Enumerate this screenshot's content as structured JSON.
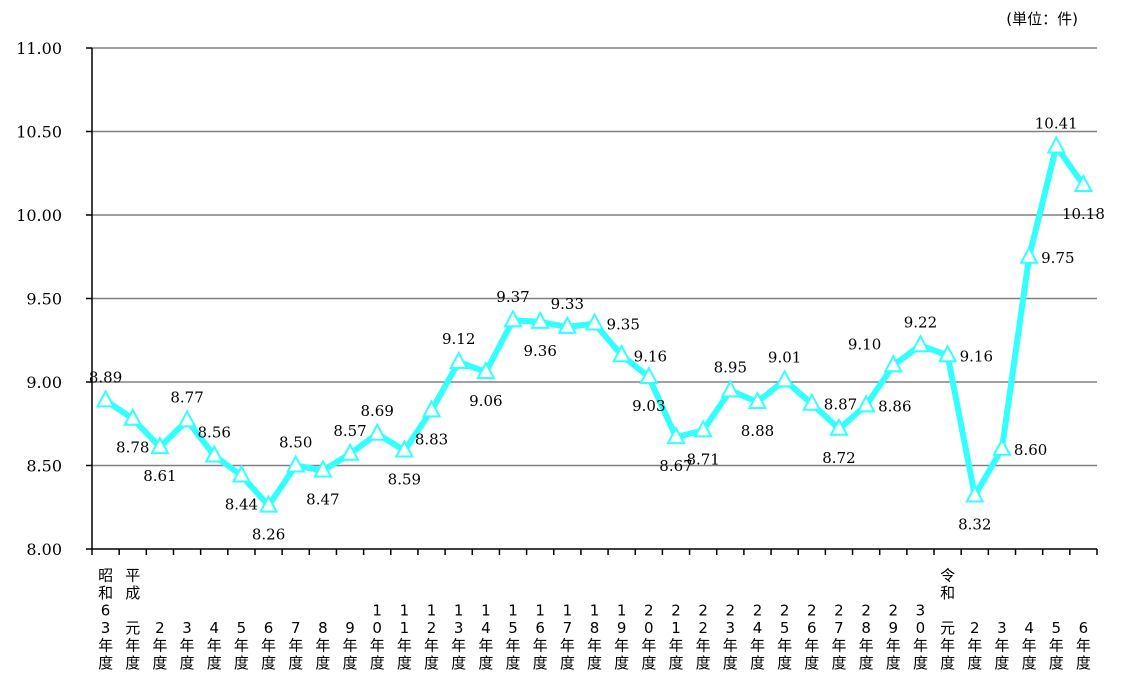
{
  "chart_data": {
    "type": "line",
    "unit_label": "(単位：件)",
    "ylim": [
      8.0,
      11.0
    ],
    "yticks": [
      "8.00",
      "8.50",
      "9.00",
      "9.50",
      "10.00",
      "10.50",
      "11.00"
    ],
    "ytick_values": [
      8.0,
      8.5,
      9.0,
      9.5,
      10.0,
      10.5,
      11.0
    ],
    "grid": true,
    "categories": [
      [
        "昭",
        "和",
        "6",
        "3",
        "年",
        "度"
      ],
      [
        "平",
        "成",
        "",
        "元",
        "年",
        "度"
      ],
      [
        "2",
        "年",
        "度"
      ],
      [
        "3",
        "年",
        "度"
      ],
      [
        "4",
        "年",
        "度"
      ],
      [
        "5",
        "年",
        "度"
      ],
      [
        "6",
        "年",
        "度"
      ],
      [
        "7",
        "年",
        "度"
      ],
      [
        "8",
        "年",
        "度"
      ],
      [
        "9",
        "年",
        "度"
      ],
      [
        "1",
        "0",
        "年",
        "度"
      ],
      [
        "1",
        "1",
        "年",
        "度"
      ],
      [
        "1",
        "2",
        "年",
        "度"
      ],
      [
        "1",
        "3",
        "年",
        "度"
      ],
      [
        "1",
        "4",
        "年",
        "度"
      ],
      [
        "1",
        "5",
        "年",
        "度"
      ],
      [
        "1",
        "6",
        "年",
        "度"
      ],
      [
        "1",
        "7",
        "年",
        "度"
      ],
      [
        "1",
        "8",
        "年",
        "度"
      ],
      [
        "1",
        "9",
        "年",
        "度"
      ],
      [
        "2",
        "0",
        "年",
        "度"
      ],
      [
        "2",
        "1",
        "年",
        "度"
      ],
      [
        "2",
        "2",
        "年",
        "度"
      ],
      [
        "2",
        "3",
        "年",
        "度"
      ],
      [
        "2",
        "4",
        "年",
        "度"
      ],
      [
        "2",
        "5",
        "年",
        "度"
      ],
      [
        "2",
        "6",
        "年",
        "度"
      ],
      [
        "2",
        "7",
        "年",
        "度"
      ],
      [
        "2",
        "8",
        "年",
        "度"
      ],
      [
        "2",
        "9",
        "年",
        "度"
      ],
      [
        "3",
        "0",
        "年",
        "度"
      ],
      [
        "令",
        "和",
        "",
        "元",
        "年",
        "度"
      ],
      [
        "2",
        "年",
        "度"
      ],
      [
        "3",
        "年",
        "度"
      ],
      [
        "4",
        "年",
        "度"
      ],
      [
        "5",
        "年",
        "度"
      ],
      [
        "6",
        "年",
        "度"
      ]
    ],
    "values": [
      8.89,
      8.78,
      8.61,
      8.77,
      8.56,
      8.44,
      8.26,
      8.5,
      8.47,
      8.57,
      8.69,
      8.59,
      8.83,
      9.12,
      9.06,
      9.37,
      9.36,
      9.33,
      9.35,
      9.16,
      9.03,
      8.67,
      8.71,
      8.95,
      8.88,
      9.01,
      8.87,
      8.72,
      8.86,
      9.1,
      9.22,
      9.16,
      8.32,
      8.6,
      9.75,
      10.41,
      10.18
    ],
    "labels": [
      "8.89",
      "8.78",
      "8.61",
      "8.77",
      "8.56",
      "8.44",
      "8.26",
      "8.50",
      "8.47",
      "8.57",
      "8.69",
      "8.59",
      "8.83",
      "9.12",
      "9.06",
      "9.37",
      "9.36",
      "9.33",
      "9.35",
      "9.16",
      "9.03",
      "8.67",
      "8.71",
      "8.95",
      "8.88",
      "9.01",
      "8.87",
      "8.72",
      "8.86",
      "9.10",
      "9.22",
      "9.16",
      "8.32",
      "8.60",
      "9.75",
      "10.41",
      "10.18"
    ],
    "label_pos": [
      "above",
      "below",
      "below",
      "above",
      "above",
      "below",
      "below",
      "above",
      "below",
      "above",
      "above",
      "below",
      "below",
      "above",
      "below",
      "above",
      "below",
      "above",
      "right",
      "right",
      "below",
      "below",
      "below",
      "above",
      "below",
      "above",
      "right",
      "below",
      "right",
      "left",
      "above",
      "right",
      "below",
      "right",
      "right",
      "above",
      "below"
    ],
    "colors": {
      "line": "#33ffff",
      "marker_fill": "#ffffff",
      "marker_stroke": "#33ffff",
      "grid": "#808080",
      "axis": "#000000"
    }
  }
}
